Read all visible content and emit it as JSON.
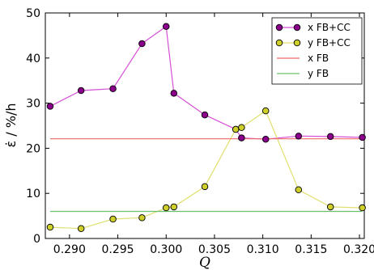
{
  "chart_data": {
    "type": "line",
    "xlabel": "Q",
    "ylabel": "ε̇ / %/h",
    "xlim": [
      0.2875,
      0.3205
    ],
    "ylim": [
      0,
      50
    ],
    "xticks": [
      0.29,
      0.295,
      0.3,
      0.305,
      0.31,
      0.315,
      0.32
    ],
    "xtick_labels": [
      "0.290",
      "0.295",
      "0.300",
      "0.305",
      "0.310",
      "0.315",
      "0.320"
    ],
    "yticks": [
      0,
      10,
      20,
      30,
      40,
      50
    ],
    "ytick_labels": [
      "0",
      "10",
      "20",
      "30",
      "40",
      "50"
    ],
    "grid": false,
    "legend_position": "top-right",
    "series": [
      {
        "name": "x FB+CC",
        "kind": "line-marker",
        "line_color": "#d54ed5",
        "marker_color": "#8a008a",
        "x": [
          0.288,
          0.2912,
          0.2945,
          0.2975,
          0.3,
          0.3008,
          0.304,
          0.3072,
          0.3078,
          0.3103,
          0.3137,
          0.317,
          0.3203
        ],
        "y": [
          29.3,
          32.8,
          33.2,
          43.2,
          47.0,
          32.2,
          27.4,
          24.2,
          22.3,
          22.0,
          22.7,
          22.6,
          22.4
        ]
      },
      {
        "name": "y FB+CC",
        "kind": "line-marker",
        "line_color": "#e0e070",
        "marker_color": "#cfcf2a",
        "x": [
          0.288,
          0.2912,
          0.2945,
          0.2975,
          0.3,
          0.3008,
          0.304,
          0.3072,
          0.3078,
          0.3103,
          0.3137,
          0.317,
          0.3203
        ],
        "y": [
          2.5,
          2.2,
          4.3,
          4.6,
          6.8,
          7.0,
          11.5,
          24.2,
          24.6,
          28.3,
          10.8,
          7.0,
          6.8
        ]
      },
      {
        "name": "x FB",
        "kind": "hline",
        "line_color": "#f06a6a",
        "x": [
          0.288,
          0.3203
        ],
        "y": [
          22.1,
          22.1
        ]
      },
      {
        "name": "y FB",
        "kind": "hline",
        "line_color": "#6cbf6c",
        "x": [
          0.288,
          0.3203
        ],
        "y": [
          6.0,
          6.0
        ]
      }
    ]
  }
}
